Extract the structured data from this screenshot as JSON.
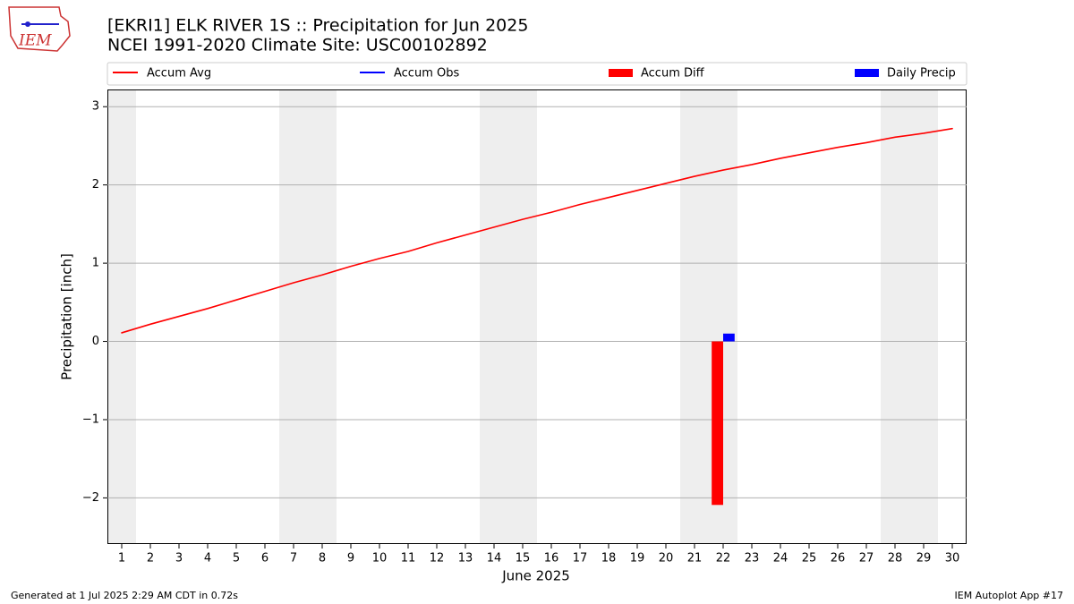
{
  "logo_text": "IEM",
  "footer_left": "Generated at 1 Jul 2025 2:29 AM CDT in 0.72s",
  "footer_right": "IEM Autoplot App #17",
  "chart_data": {
    "type": "line",
    "title": "[EKRI1] ELK RIVER 1S :: Precipitation for Jun 2025",
    "subtitle": "NCEI 1991-2020 Climate Site: USC00102892",
    "xlabel": "June 2025",
    "ylabel": "Precipitation [inch]",
    "x": [
      1,
      2,
      3,
      4,
      5,
      6,
      7,
      8,
      9,
      10,
      11,
      12,
      13,
      14,
      15,
      16,
      17,
      18,
      19,
      20,
      21,
      22,
      23,
      24,
      25,
      26,
      27,
      28,
      29,
      30
    ],
    "xlim": [
      0.5,
      30.5
    ],
    "xticks": [
      1,
      2,
      3,
      4,
      5,
      6,
      7,
      8,
      9,
      10,
      11,
      12,
      13,
      14,
      15,
      16,
      17,
      18,
      19,
      20,
      21,
      22,
      23,
      24,
      25,
      26,
      27,
      28,
      29,
      30
    ],
    "ylim": [
      -2.59,
      3.22
    ],
    "yticks": [
      -2,
      -1,
      0,
      1,
      2,
      3
    ],
    "grid": true,
    "legend": "top",
    "series": [
      {
        "name": "Accum Avg",
        "type": "line",
        "color": "#ff0000",
        "values": [
          0.11,
          0.22,
          0.32,
          0.42,
          0.53,
          0.64,
          0.75,
          0.85,
          0.96,
          1.06,
          1.15,
          1.26,
          1.36,
          1.46,
          1.56,
          1.65,
          1.75,
          1.84,
          1.93,
          2.02,
          2.11,
          2.19,
          2.26,
          2.34,
          2.41,
          2.48,
          2.54,
          2.61,
          2.66,
          2.72
        ]
      },
      {
        "name": "Accum Obs",
        "type": "line",
        "color": "#0000ff",
        "values": [
          null,
          null,
          null,
          null,
          null,
          null,
          null,
          null,
          null,
          null,
          null,
          null,
          null,
          null,
          null,
          null,
          null,
          null,
          null,
          null,
          null,
          0.1,
          null,
          null,
          null,
          null,
          null,
          null,
          null,
          null
        ]
      },
      {
        "name": "Accum Diff",
        "type": "bar",
        "color": "#ff0000",
        "values": [
          null,
          null,
          null,
          null,
          null,
          null,
          null,
          null,
          null,
          null,
          null,
          null,
          null,
          null,
          null,
          null,
          null,
          null,
          null,
          null,
          null,
          -2.09,
          null,
          null,
          null,
          null,
          null,
          null,
          null,
          null
        ]
      },
      {
        "name": "Daily Precip",
        "type": "bar",
        "color": "#0000ff",
        "values": [
          null,
          null,
          null,
          null,
          null,
          null,
          null,
          null,
          null,
          null,
          null,
          null,
          null,
          null,
          null,
          null,
          null,
          null,
          null,
          null,
          null,
          0.1,
          null,
          null,
          null,
          null,
          null,
          null,
          null,
          null
        ]
      }
    ]
  }
}
